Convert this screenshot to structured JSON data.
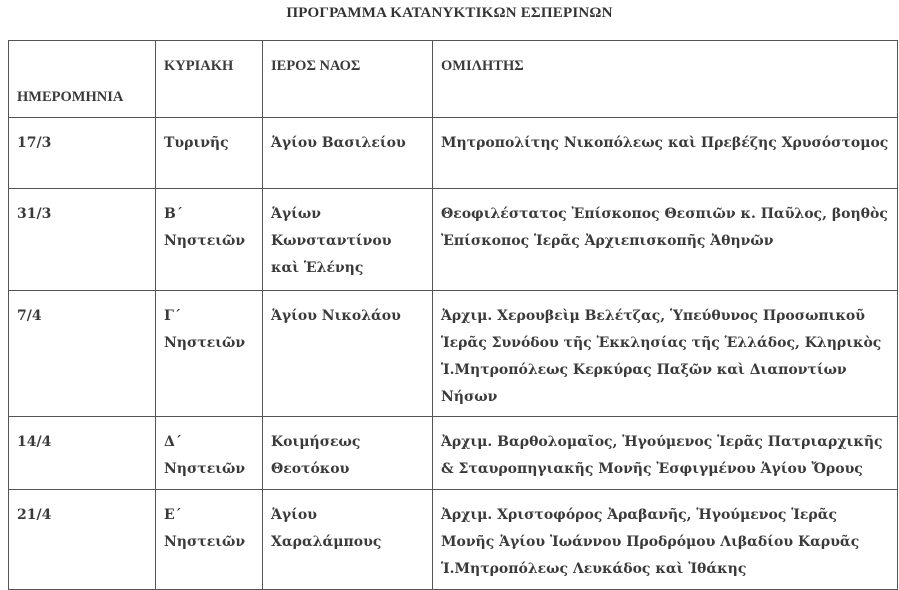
{
  "title": "ΠΡΟΓΡΑΜΜΑ ΚΑΤΑΝΥΚΤΙΚΩΝ ΕΣΠΕΡΙΝΩΝ",
  "headers": [
    "ΗΜΕΡΟΜΗΝΙΑ",
    "ΚΥΡΙΑΚΗ",
    "ΙΕΡΟΣ ΝΑΟΣ",
    "ΟΜΙΛΗΤΗΣ"
  ],
  "rows": [
    {
      "date": "17/3",
      "sunday": "Τυρινῆς",
      "church": "Ἁγίου Βασιλείου",
      "speaker": "Μητροπολίτης Νικοπόλεως καὶ Πρεβέζης Χρυσόστομος"
    },
    {
      "date": "31/3",
      "sunday": "Β΄ Νηστειῶν",
      "church": "Ἁγίων Κωνσταντίνου καὶ Ἑλένης",
      "speaker": "Θεοφιλέστατος Ἐπίσκοπος Θεσπιῶν κ. Παῦλος, βοηθὸς Ἐπίσκοπος Ἱερᾶς Ἀρχιεπισκοπῆς Ἀθηνῶν"
    },
    {
      "date": "7/4",
      "sunday": "Γ΄ Νηστειῶν",
      "church": "Ἁγίου Νικολάου",
      "speaker": "Ἀρχιμ. Χερουβεὶμ Βελέτζας, Ὑπεύθυνος Προσωπικοῦ Ἱερᾶς Συνόδου τῆς Ἐκκλησίας τῆς Ἑλλάδος, Κληρικὸς Ἱ.Μητροπόλεως Κερκύρας Παξῶν καὶ Διαποντίων Νήσων"
    },
    {
      "date": "14/4",
      "sunday": "Δ΄ Νηστειῶν",
      "church": "Κοιμήσεως Θεοτόκου",
      "speaker": "Ἀρχιμ. Βαρθολομαῖος, Ἡγούμενος Ἱερᾶς Πατριαρχικῆς & Σταυροπηγιακῆς Μονῆς Ἐσφιγμένου Ἁγίου Ὄρους"
    },
    {
      "date": "21/4",
      "sunday": "Ε΄ Νηστειῶν",
      "church": "Ἁγίου Χαραλάμπους",
      "speaker": "Ἀρχιμ. Χριστοφόρος Ἀραβανῆς, Ἡγούμενος Ἱερᾶς Μονῆς Ἁγίου Ἰωάννου Προδρόμου Λιβαδίου Καρυᾶς Ἱ.Μητροπόλεως Λευκάδος καὶ Ἰθάκης"
    }
  ]
}
